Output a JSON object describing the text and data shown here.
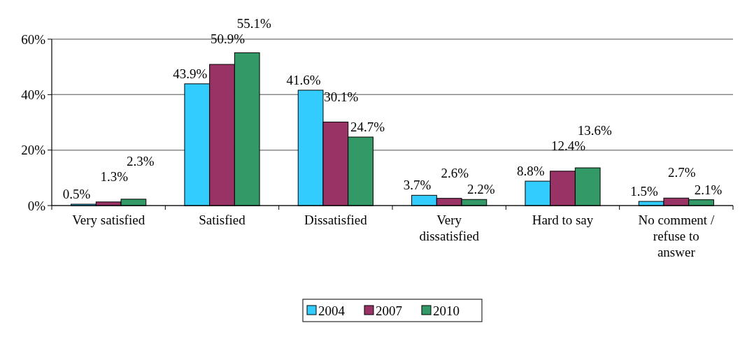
{
  "chart_data": {
    "type": "bar",
    "categories": [
      "Very satisfied",
      "Satisfied",
      "Dissatisfied",
      "Very dissatisfied",
      "Hard to say",
      "No comment / refuse to answer"
    ],
    "series": [
      {
        "name": "2004",
        "color": "#33ccff",
        "values": [
          0.5,
          43.9,
          41.6,
          3.7,
          8.8,
          1.5
        ],
        "value_labels": [
          "0.5%",
          "43.9%",
          "41.6%",
          "3.7%",
          "8.8%",
          "1.5%"
        ]
      },
      {
        "name": "2007",
        "color": "#993366",
        "values": [
          1.3,
          50.9,
          30.1,
          2.6,
          12.4,
          2.7
        ],
        "value_labels": [
          "1.3%",
          "50.9%",
          "30.1%",
          "2.6%",
          "12.4%",
          "2.7%"
        ]
      },
      {
        "name": "2010",
        "color": "#339966",
        "values": [
          2.3,
          55.1,
          24.7,
          2.2,
          13.6,
          2.1
        ],
        "value_labels": [
          "2.3%",
          "55.1%",
          "24.7%",
          "2.2%",
          "13.6%",
          "2.1%"
        ]
      }
    ],
    "ylim": [
      0,
      60
    ],
    "yticks": [
      {
        "value": 0,
        "label": "0%"
      },
      {
        "value": 20,
        "label": "20%"
      },
      {
        "value": 40,
        "label": "40%"
      },
      {
        "value": 60,
        "label": "60%"
      }
    ],
    "grid": "y",
    "legend": "bottom"
  }
}
